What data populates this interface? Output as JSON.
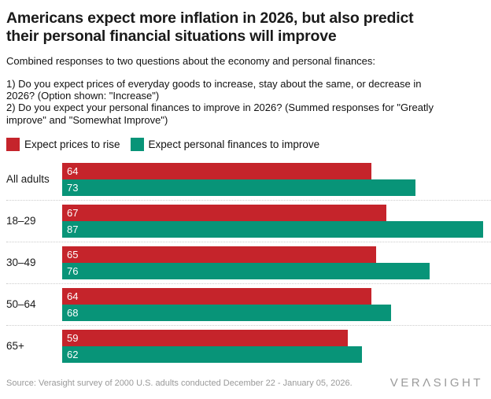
{
  "header": {
    "title": "Americans expect more inflation in 2026, but also predict\ntheir personal financial situations will improve",
    "subtitle": "Combined responses to two questions about the economy and personal finances:",
    "question1": "1) Do you expect prices of everyday goods to increase, stay about the same, or decrease in\n2026? (Option shown: \"Increase\")",
    "question2": "2) Do you expect your personal finances to improve in 2026? (Summed responses for \"Greatly\nimprove\" and \"Somewhat Improve\")"
  },
  "legend": [
    {
      "label": "Expect prices to rise",
      "color": "#C5242B"
    },
    {
      "label": "Expect personal finances to improve",
      "color": "#089478"
    }
  ],
  "chart_data": {
    "type": "bar",
    "orientation": "horizontal",
    "title": "Americans expect more inflation in 2026, but also predict their personal financial situations will improve",
    "categories": [
      "All adults",
      "18–29",
      "30–49",
      "50–64",
      "65+"
    ],
    "series": [
      {
        "name": "Expect prices to rise",
        "color": "#C5242B",
        "values": [
          64,
          67,
          65,
          64,
          59
        ]
      },
      {
        "name": "Expect personal finances to improve",
        "color": "#089478",
        "values": [
          73,
          87,
          76,
          68,
          62
        ]
      }
    ],
    "xlim": [
      0,
      88.7
    ],
    "grid": false,
    "value_labels": "inside-left-white",
    "legend_position": "top",
    "separator_style": "dotted-between-groups"
  },
  "footer": {
    "source": "Source: Verasight survey of 2000 U.S. adults conducted December 22 - January 05, 2026.",
    "logo": "VERΛSIGHT"
  },
  "colors": {
    "prices_red": "#C5242B",
    "finances_teal": "#089478",
    "text": "#1a1a1a",
    "separator": "#cccccc",
    "footer_gray": "#999999"
  }
}
